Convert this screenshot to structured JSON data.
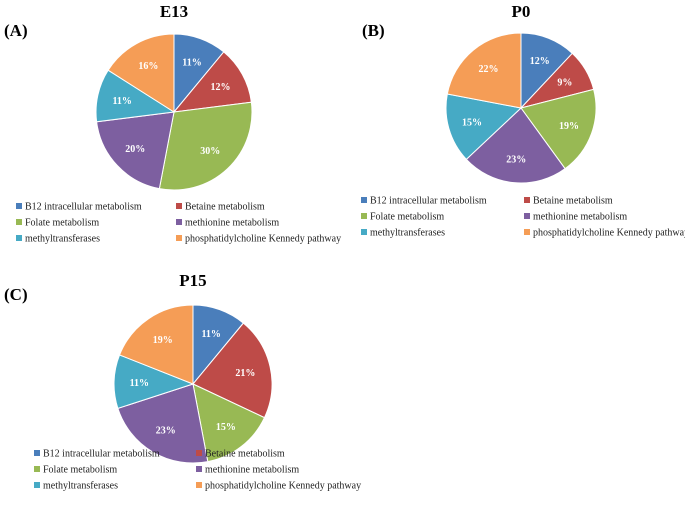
{
  "colors": {
    "B12 intracellular metabolism": "#4a7ebb",
    "Betaine metabolism": "#be4b48",
    "Folate metabolism": "#98b954",
    "methionine metabolism": "#7d5fa0",
    "methyltransferases": "#46aac5",
    "phosphatidylcholine Kennedy pathway": "#f59d56"
  },
  "chart_data": [
    {
      "type": "pie",
      "panel": "(A)",
      "title": "E13",
      "categories": [
        "B12 intracellular metabolism",
        "Betaine metabolism",
        "Folate metabolism",
        "methionine metabolism",
        "methyltransferases",
        "phosphatidylcholine Kennedy pathway"
      ],
      "values": [
        11,
        12,
        30,
        20,
        11,
        16
      ],
      "labels": [
        "11%",
        "12%",
        "30%",
        "20%",
        "11%",
        "16%"
      ],
      "legend": "bottom"
    },
    {
      "type": "pie",
      "panel": "(B)",
      "title": "P0",
      "categories": [
        "B12 intracellular metabolism",
        "Betaine metabolism",
        "Folate metabolism",
        "methionine metabolism",
        "methyltransferases",
        "phosphatidylcholine Kennedy pathway"
      ],
      "values": [
        12,
        9,
        19,
        23,
        15,
        22
      ],
      "labels": [
        "12%",
        "9%",
        "19%",
        "23%",
        "15%",
        "22%"
      ],
      "legend": "bottom"
    },
    {
      "type": "pie",
      "panel": "(C)",
      "title": "P15",
      "categories": [
        "B12 intracellular metabolism",
        "Betaine metabolism",
        "Folate metabolism",
        "methionine metabolism",
        "methyltransferases",
        "phosphatidylcholine Kennedy pathway"
      ],
      "values": [
        11,
        21,
        15,
        23,
        11,
        19
      ],
      "labels": [
        "11%",
        "21%",
        "15%",
        "23%",
        "11%",
        "19%"
      ],
      "legend": "bottom"
    }
  ]
}
